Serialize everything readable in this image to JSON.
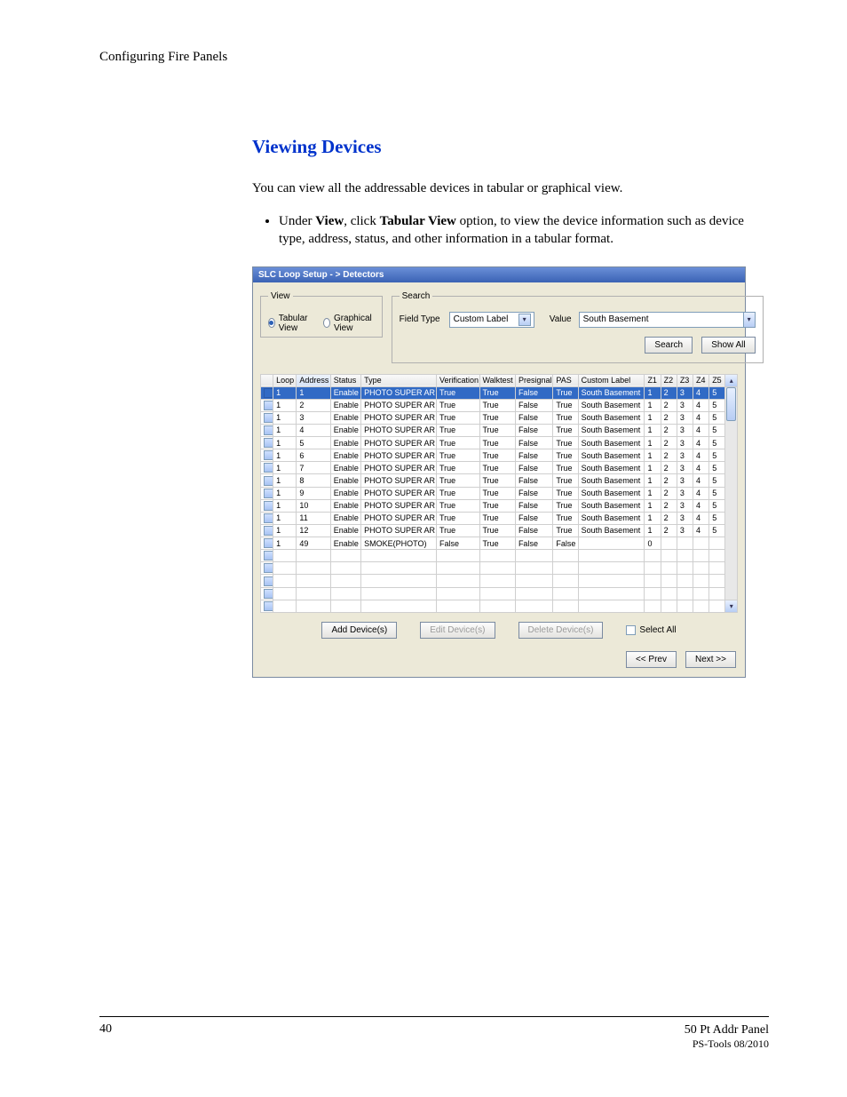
{
  "running_head": "Configuring Fire Panels",
  "section_title": "Viewing Devices",
  "intro": "You can view all the addressable devices in tabular or graphical view.",
  "bullet": {
    "pre": "Under ",
    "b1": "View",
    "mid1": ", click ",
    "b2": "Tabular View",
    "post": " option, to view the device information such as device type, address, status, and other information in a tabular format."
  },
  "app": {
    "title": "SLC Loop Setup - > Detectors",
    "view": {
      "legend": "View",
      "tabular": "Tabular View",
      "graphical": "Graphical View",
      "selected": "tabular"
    },
    "search": {
      "legend": "Search",
      "field_type_label": "Field Type",
      "field_type_value": "Custom Label",
      "value_label": "Value",
      "value_text": "South Basement",
      "search_btn": "Search",
      "show_all_btn": "Show All"
    },
    "columns": [
      "",
      "Loop",
      "Address",
      "Status",
      "Type",
      "Verification",
      "Walktest",
      "Presignal",
      "PAS",
      "Custom Label",
      "Z1",
      "Z2",
      "Z3",
      "Z4",
      "Z5"
    ],
    "rows": [
      {
        "sel": true,
        "loop": "1",
        "addr": "1",
        "status": "Enable",
        "type": "PHOTO SUPER AR",
        "ver": "True",
        "walk": "True",
        "pre": "False",
        "pas": "True",
        "lbl": "South Basement",
        "z": [
          "1",
          "2",
          "3",
          "4",
          "5"
        ]
      },
      {
        "sel": false,
        "loop": "1",
        "addr": "2",
        "status": "Enable",
        "type": "PHOTO SUPER AR",
        "ver": "True",
        "walk": "True",
        "pre": "False",
        "pas": "True",
        "lbl": "South Basement",
        "z": [
          "1",
          "2",
          "3",
          "4",
          "5"
        ]
      },
      {
        "sel": false,
        "loop": "1",
        "addr": "3",
        "status": "Enable",
        "type": "PHOTO SUPER AR",
        "ver": "True",
        "walk": "True",
        "pre": "False",
        "pas": "True",
        "lbl": "South Basement",
        "z": [
          "1",
          "2",
          "3",
          "4",
          "5"
        ]
      },
      {
        "sel": false,
        "loop": "1",
        "addr": "4",
        "status": "Enable",
        "type": "PHOTO SUPER AR",
        "ver": "True",
        "walk": "True",
        "pre": "False",
        "pas": "True",
        "lbl": "South Basement",
        "z": [
          "1",
          "2",
          "3",
          "4",
          "5"
        ]
      },
      {
        "sel": false,
        "loop": "1",
        "addr": "5",
        "status": "Enable",
        "type": "PHOTO SUPER AR",
        "ver": "True",
        "walk": "True",
        "pre": "False",
        "pas": "True",
        "lbl": "South Basement",
        "z": [
          "1",
          "2",
          "3",
          "4",
          "5"
        ]
      },
      {
        "sel": false,
        "loop": "1",
        "addr": "6",
        "status": "Enable",
        "type": "PHOTO SUPER AR",
        "ver": "True",
        "walk": "True",
        "pre": "False",
        "pas": "True",
        "lbl": "South Basement",
        "z": [
          "1",
          "2",
          "3",
          "4",
          "5"
        ]
      },
      {
        "sel": false,
        "loop": "1",
        "addr": "7",
        "status": "Enable",
        "type": "PHOTO SUPER AR",
        "ver": "True",
        "walk": "True",
        "pre": "False",
        "pas": "True",
        "lbl": "South Basement",
        "z": [
          "1",
          "2",
          "3",
          "4",
          "5"
        ]
      },
      {
        "sel": false,
        "loop": "1",
        "addr": "8",
        "status": "Enable",
        "type": "PHOTO SUPER AR",
        "ver": "True",
        "walk": "True",
        "pre": "False",
        "pas": "True",
        "lbl": "South Basement",
        "z": [
          "1",
          "2",
          "3",
          "4",
          "5"
        ]
      },
      {
        "sel": false,
        "loop": "1",
        "addr": "9",
        "status": "Enable",
        "type": "PHOTO SUPER AR",
        "ver": "True",
        "walk": "True",
        "pre": "False",
        "pas": "True",
        "lbl": "South Basement",
        "z": [
          "1",
          "2",
          "3",
          "4",
          "5"
        ]
      },
      {
        "sel": false,
        "loop": "1",
        "addr": "10",
        "status": "Enable",
        "type": "PHOTO SUPER AR",
        "ver": "True",
        "walk": "True",
        "pre": "False",
        "pas": "True",
        "lbl": "South Basement",
        "z": [
          "1",
          "2",
          "3",
          "4",
          "5"
        ]
      },
      {
        "sel": false,
        "loop": "1",
        "addr": "11",
        "status": "Enable",
        "type": "PHOTO SUPER AR",
        "ver": "True",
        "walk": "True",
        "pre": "False",
        "pas": "True",
        "lbl": "South Basement",
        "z": [
          "1",
          "2",
          "3",
          "4",
          "5"
        ]
      },
      {
        "sel": false,
        "loop": "1",
        "addr": "12",
        "status": "Enable",
        "type": "PHOTO SUPER AR",
        "ver": "True",
        "walk": "True",
        "pre": "False",
        "pas": "True",
        "lbl": "South Basement",
        "z": [
          "1",
          "2",
          "3",
          "4",
          "5"
        ]
      },
      {
        "sel": false,
        "loop": "1",
        "addr": "49",
        "status": "Enable",
        "type": "SMOKE(PHOTO)",
        "ver": "False",
        "walk": "True",
        "pre": "False",
        "pas": "False",
        "lbl": "",
        "z": [
          "0",
          "",
          "",
          "",
          ""
        ]
      }
    ],
    "empty_rows": 5,
    "actions": {
      "add": "Add Device(s)",
      "edit": "Edit Device(s)",
      "delete": "Delete Device(s)",
      "select_all": "Select All",
      "prev": "<< Prev",
      "next": "Next >>"
    }
  },
  "footer": {
    "page": "40",
    "right1": "50 Pt Addr Panel",
    "right2": "PS-Tools 08/2010"
  }
}
